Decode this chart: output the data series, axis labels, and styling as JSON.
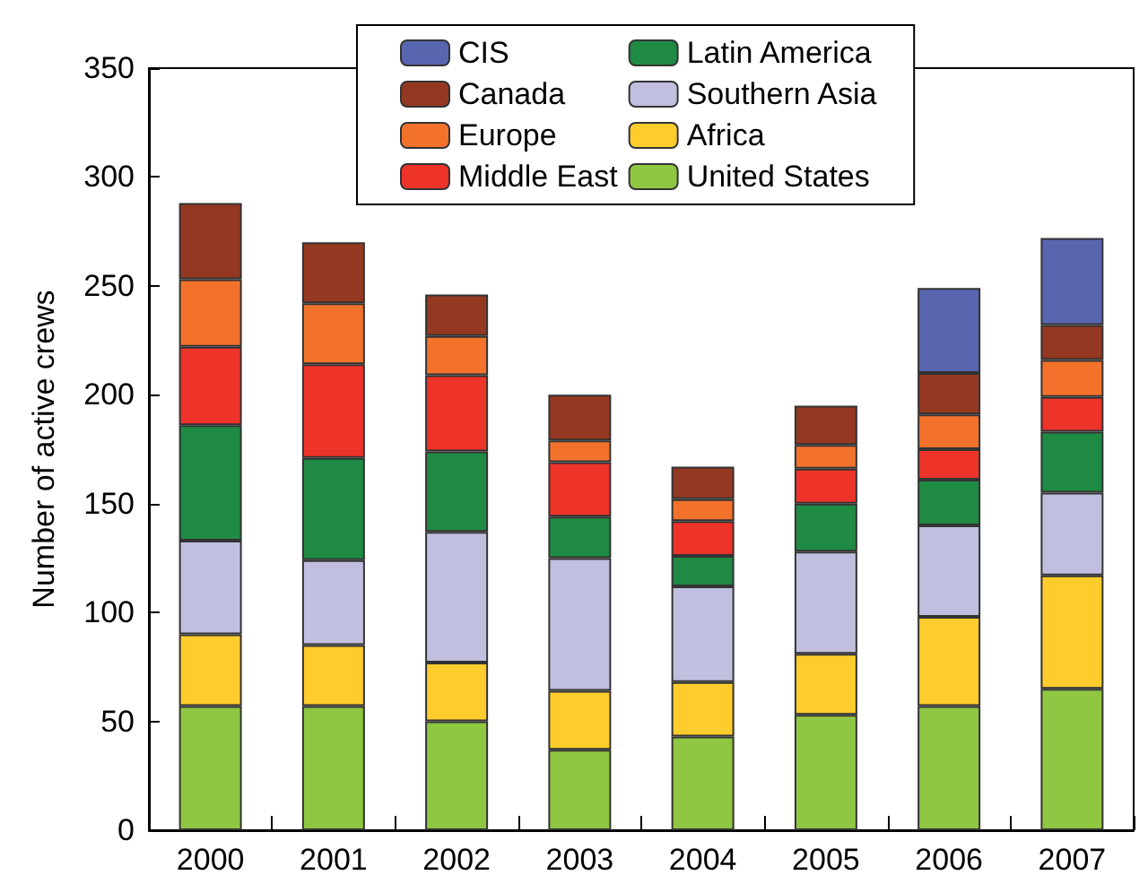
{
  "chart_data": {
    "type": "bar",
    "stacked": true,
    "ylabel": "Number of active crews",
    "categories": [
      "2000",
      "2001",
      "2002",
      "2003",
      "2004",
      "2005",
      "2006",
      "2007"
    ],
    "series": [
      {
        "name": "United States",
        "color": "#8fc642",
        "values": [
          57,
          57,
          50,
          37,
          43,
          53,
          57,
          65
        ]
      },
      {
        "name": "Africa",
        "color": "#fecc2c",
        "values": [
          33,
          28,
          27,
          27,
          25,
          28,
          41,
          52
        ]
      },
      {
        "name": "Southern Asia",
        "color": "#c0bfdf",
        "values": [
          43,
          39,
          60,
          61,
          44,
          47,
          42,
          38
        ]
      },
      {
        "name": "Latin America",
        "color": "#1f8a43",
        "values": [
          53,
          47,
          37,
          19,
          14,
          22,
          21,
          28
        ]
      },
      {
        "name": "Middle East",
        "color": "#ee3329",
        "values": [
          36,
          43,
          35,
          25,
          16,
          16,
          14,
          16
        ]
      },
      {
        "name": "Europe",
        "color": "#f2722c",
        "values": [
          31,
          28,
          18,
          10,
          10,
          11,
          16,
          17
        ]
      },
      {
        "name": "Canada",
        "color": "#943821",
        "values": [
          35,
          28,
          19,
          21,
          15,
          18,
          19,
          16
        ]
      },
      {
        "name": "CIS",
        "color": "#5866b0",
        "values": [
          null,
          null,
          null,
          null,
          null,
          null,
          39,
          40
        ]
      }
    ],
    "ylim": [
      0,
      350
    ],
    "yticks": [
      0,
      50,
      100,
      150,
      200,
      250,
      300,
      350
    ],
    "grid": false,
    "legend": "top"
  }
}
